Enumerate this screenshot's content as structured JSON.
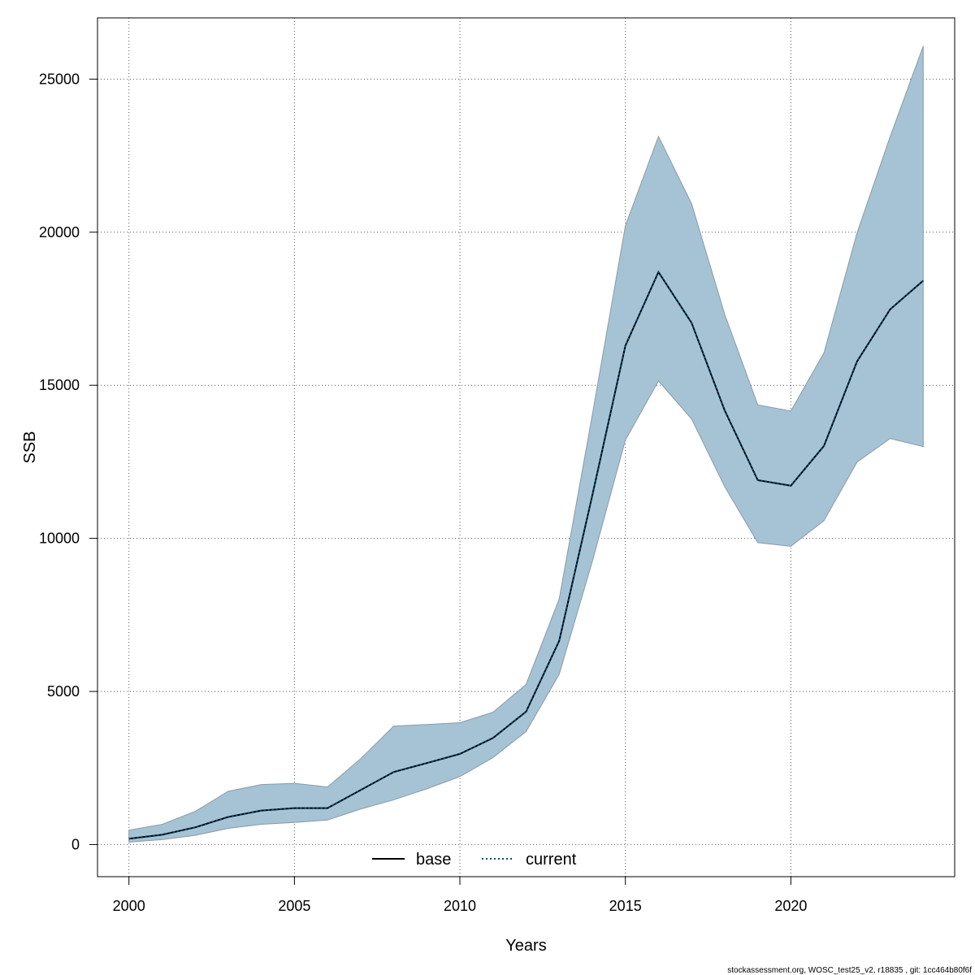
{
  "chart_data": {
    "type": "area",
    "xlabel": "Years",
    "ylabel": "SSB",
    "xlim": [
      1999.05,
      2024.95
    ],
    "ylim": [
      -1050,
      27000
    ],
    "x_ticks": [
      "2000",
      "2005",
      "2010",
      "2015",
      "2020"
    ],
    "y_ticks": [
      "0",
      "5000",
      "10000",
      "15000",
      "20000",
      "25000"
    ],
    "grid": true,
    "legend_placement": "bottom",
    "x": [
      2000,
      2001,
      2002,
      2003,
      2004,
      2005,
      2006,
      2007,
      2008,
      2009,
      2010,
      2011,
      2012,
      2013,
      2014,
      2015,
      2016,
      2017,
      2018,
      2019,
      2020,
      2021,
      2022,
      2023,
      2024
    ],
    "series": [
      {
        "name": "base",
        "style": "solid",
        "color": "#000000",
        "values": [
          190,
          320,
          560,
          900,
          1110,
          1190,
          1190,
          1780,
          2370,
          2660,
          2960,
          3480,
          4340,
          6650,
          11400,
          16290,
          18700,
          17040,
          14180,
          11900,
          11720,
          13020,
          15780,
          17480,
          18420
        ]
      },
      {
        "name": "current",
        "style": "dotted",
        "color": "#00507c",
        "values": [
          190,
          320,
          560,
          900,
          1110,
          1190,
          1190,
          1780,
          2370,
          2660,
          2960,
          3480,
          4340,
          6650,
          11400,
          16290,
          18700,
          17040,
          14180,
          11900,
          11720,
          13020,
          15780,
          17480,
          18420
        ]
      }
    ],
    "confidence_band": {
      "color": "#a5c3d5",
      "lower": [
        80,
        160,
        300,
        530,
        660,
        720,
        800,
        1160,
        1460,
        1820,
        2220,
        2840,
        3690,
        5560,
        9240,
        13210,
        15140,
        13900,
        11690,
        9860,
        9740,
        10580,
        12490,
        13260,
        13000
      ],
      "upper": [
        470,
        660,
        1080,
        1740,
        1960,
        2000,
        1880,
        2800,
        3870,
        3920,
        3980,
        4320,
        5230,
        8020,
        14030,
        20210,
        23130,
        20930,
        17320,
        14360,
        14160,
        16060,
        19980,
        23120,
        26080
      ]
    }
  },
  "legend": {
    "items": [
      {
        "label": "base",
        "style": "solid",
        "color": "#000000"
      },
      {
        "label": "current",
        "style": "dotted",
        "color": "#00507c"
      }
    ]
  },
  "footer": {
    "text": "stockassessment.org, WOSC_test25_v2, r18835 , git: 1cc464b80f6f"
  }
}
